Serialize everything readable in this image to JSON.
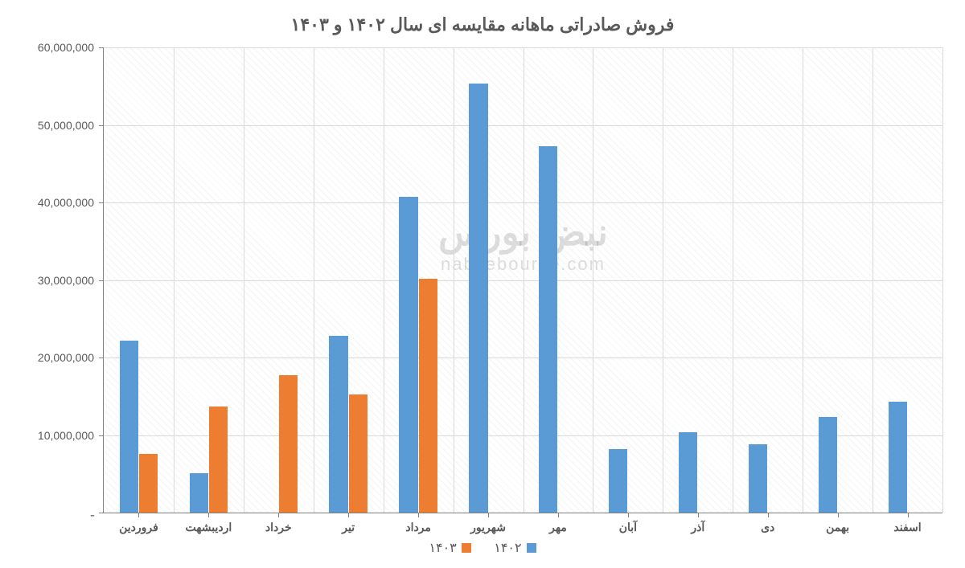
{
  "chart": {
    "type": "bar",
    "title": "فروش صادراتی ماهانه مقایسه ای سال ۱۴۰۲ و ۱۴۰۳",
    "title_fontsize": 22,
    "title_color": "#595959",
    "background_color": "#ffffff",
    "grid_color": "#d9d9d9",
    "axis_color": "#808080",
    "hatch_color": "rgba(0,0,0,0.045)",
    "label_fontsize": 14,
    "label_color": "#595959",
    "ylim": [
      0,
      60000000
    ],
    "ytick_step": 10000000,
    "yticks": [
      {
        "v": 0,
        "label": "ـ"
      },
      {
        "v": 10000000,
        "label": "10,000,000"
      },
      {
        "v": 20000000,
        "label": "20,000,000"
      },
      {
        "v": 30000000,
        "label": "30,000,000"
      },
      {
        "v": 40000000,
        "label": "40,000,000"
      },
      {
        "v": 50000000,
        "label": "50,000,000"
      },
      {
        "v": 60000000,
        "label": "60,000,000"
      }
    ],
    "categories": [
      "فروردین",
      "ارديبشهت",
      "خرداد",
      "تیر",
      "مرداد",
      "شهریور",
      "مهر",
      "آبان",
      "آذر",
      "دی",
      "بهمن",
      "اسفند"
    ],
    "series": [
      {
        "name": "۱۴۰۲",
        "color": "#5b9bd5",
        "values": [
          22200000,
          5100000,
          0,
          22800000,
          40700000,
          55300000,
          47300000,
          8200000,
          10400000,
          8800000,
          12300000,
          14300000
        ]
      },
      {
        "name": "۱۴۰۳",
        "color": "#ed7d31",
        "values": [
          7600000,
          13700000,
          17700000,
          15200000,
          30200000,
          0,
          0,
          0,
          0,
          0,
          0,
          0
        ]
      }
    ],
    "bar_gap": 0.04,
    "group_gap": 0.44,
    "legend": {
      "items": [
        {
          "label": "۱۴۰۲",
          "color": "#5b9bd5"
        },
        {
          "label": "۱۴۰۳",
          "color": "#ed7d31"
        }
      ]
    },
    "watermark": {
      "fa": "نبض بورس",
      "en": "nabzebourse.com"
    }
  }
}
